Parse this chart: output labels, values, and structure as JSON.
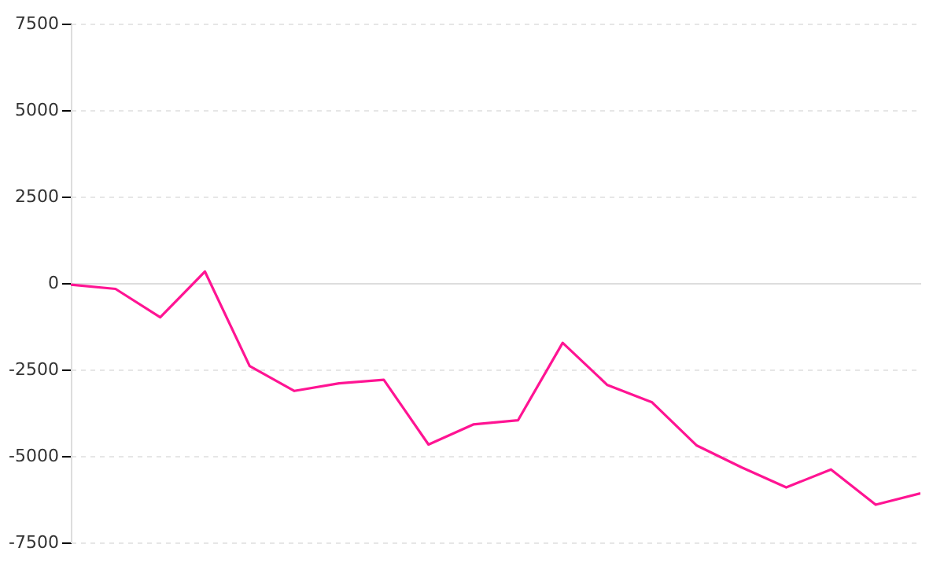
{
  "chart_data": {
    "type": "line",
    "categories": [
      null,
      null,
      null,
      null,
      null,
      null,
      null,
      null,
      null,
      null,
      null,
      null,
      null,
      null,
      null,
      null,
      null,
      null,
      null,
      null
    ],
    "series": [
      {
        "color": "#ff1493",
        "values": [
          -50,
          -170,
          -990,
          330,
          -2400,
          -3120,
          -2900,
          -2800,
          -4670,
          -4090,
          -3970,
          -1730,
          -2950,
          -3450,
          -4700,
          -5330,
          -5910,
          -5390,
          -6410,
          -6080
        ]
      }
    ],
    "ylim": [
      -7500,
      7500
    ],
    "yticks": [
      -7500,
      -5000,
      -2500,
      0,
      2500,
      5000,
      7500
    ],
    "grid": "y",
    "tick_labels": "y"
  }
}
